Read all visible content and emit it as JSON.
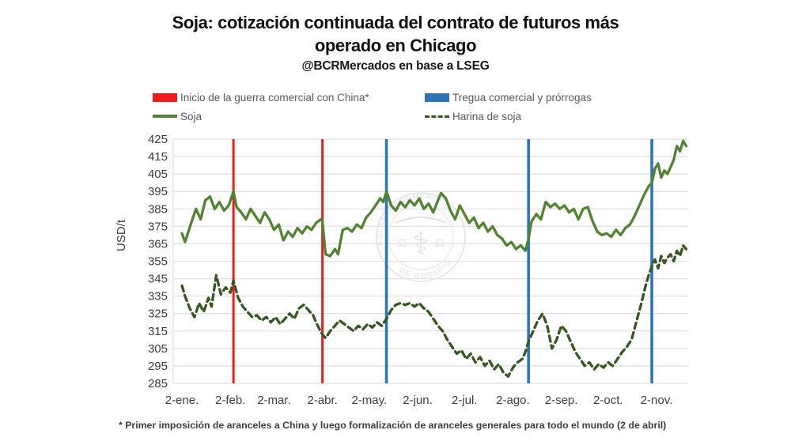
{
  "title": {
    "line1": "Soja: cotización continuada del contrato de futuros más",
    "line2": "operado en Chicago",
    "subtitle": "@BCRMercados en base a LSEG"
  },
  "legend": {
    "position": "top",
    "items": [
      {
        "label": "Inicio de la guerra comercial con China*",
        "swatch": "rect",
        "color": "#ee1c1c"
      },
      {
        "label": "Tregua comercial y prórrogas",
        "swatch": "rect",
        "color": "#2e75b6"
      },
      {
        "label": "Soja",
        "swatch": "line",
        "color": "#548235"
      },
      {
        "label": "Harina de soja",
        "swatch": "dashed-line",
        "color": "#375623"
      }
    ]
  },
  "footnote": "* Primer imposición de aranceles a China y luego formalización de aranceles generales para todo el mundo  (2 de abril)",
  "watermark": {
    "text_top": "BOLSA DE COMERCIO",
    "text_bottom": "DE ROSARIO"
  },
  "colors": {
    "event_red": "#ee1c1c",
    "event_blue": "#2e75b6",
    "soja_green": "#548235",
    "harina_dark_green": "#375623",
    "grid": "#e1e1e1",
    "axis_text": "#3d3d3d"
  },
  "chart_data": {
    "type": "line",
    "title": "Soja: cotización continuada del contrato de futuros más operado en Chicago",
    "xlabel": "",
    "ylabel": "USD/t",
    "ylim": [
      285,
      425
    ],
    "ytick_step": 10,
    "yticks": [
      425,
      415,
      405,
      395,
      385,
      375,
      365,
      355,
      345,
      335,
      325,
      315,
      305,
      295,
      285
    ],
    "grid": "horizontal",
    "legend_position": "top",
    "x_unit": "day-of-year 2025",
    "xticks": [
      {
        "day": 2,
        "label": "2-ene."
      },
      {
        "day": 33,
        "label": "2-feb."
      },
      {
        "day": 61,
        "label": "2-mar."
      },
      {
        "day": 92,
        "label": "2-abr."
      },
      {
        "day": 122,
        "label": "2-may."
      },
      {
        "day": 153,
        "label": "2-jun."
      },
      {
        "day": 183,
        "label": "2-jul."
      },
      {
        "day": 214,
        "label": "2-ago."
      },
      {
        "day": 245,
        "label": "2-sep."
      },
      {
        "day": 275,
        "label": "2-oct."
      },
      {
        "day": 306,
        "label": "2-nov."
      }
    ],
    "events": [
      {
        "day": 35,
        "color": "#ee1c1c",
        "width": 3,
        "label": "Inicio de la guerra comercial con China*"
      },
      {
        "day": 92,
        "color": "#ee1c1c",
        "width": 3,
        "label": "Inicio de la guerra comercial con China*"
      },
      {
        "day": 133,
        "color": "#2e75b6",
        "width": 3.6,
        "label": "Tregua comercial y prórrogas"
      },
      {
        "day": 224,
        "color": "#2e75b6",
        "width": 3.6,
        "label": "Tregua comercial y prórrogas"
      },
      {
        "day": 303,
        "color": "#2e75b6",
        "width": 3.6,
        "label": "Tregua comercial y prórrogas"
      }
    ],
    "series": [
      {
        "name": "Soja",
        "color": "#548235",
        "style": "solid",
        "stroke_width": 3.3,
        "points": [
          [
            2,
            371
          ],
          [
            4,
            366
          ],
          [
            8,
            377
          ],
          [
            11,
            385
          ],
          [
            14,
            379
          ],
          [
            17,
            390
          ],
          [
            20,
            392
          ],
          [
            23,
            385
          ],
          [
            26,
            389
          ],
          [
            29,
            384
          ],
          [
            32,
            387
          ],
          [
            35,
            395
          ],
          [
            37,
            386
          ],
          [
            40,
            383
          ],
          [
            43,
            379
          ],
          [
            46,
            385
          ],
          [
            49,
            381
          ],
          [
            52,
            377
          ],
          [
            55,
            383
          ],
          [
            58,
            379
          ],
          [
            61,
            373
          ],
          [
            64,
            376
          ],
          [
            67,
            367
          ],
          [
            70,
            372
          ],
          [
            73,
            369
          ],
          [
            76,
            374
          ],
          [
            79,
            371
          ],
          [
            82,
            375
          ],
          [
            85,
            373
          ],
          [
            88,
            377
          ],
          [
            91,
            379
          ],
          [
            92,
            378
          ],
          [
            94,
            359
          ],
          [
            97,
            358
          ],
          [
            100,
            362
          ],
          [
            102,
            359
          ],
          [
            105,
            373
          ],
          [
            108,
            374
          ],
          [
            111,
            372
          ],
          [
            114,
            376
          ],
          [
            117,
            374
          ],
          [
            120,
            380
          ],
          [
            123,
            383
          ],
          [
            126,
            387
          ],
          [
            129,
            391
          ],
          [
            131,
            389
          ],
          [
            133,
            395
          ],
          [
            136,
            387
          ],
          [
            139,
            384
          ],
          [
            142,
            389
          ],
          [
            145,
            386
          ],
          [
            148,
            390
          ],
          [
            151,
            387
          ],
          [
            154,
            391
          ],
          [
            157,
            385
          ],
          [
            160,
            388
          ],
          [
            163,
            383
          ],
          [
            166,
            390
          ],
          [
            168,
            394
          ],
          [
            171,
            391
          ],
          [
            174,
            384
          ],
          [
            177,
            379
          ],
          [
            180,
            387
          ],
          [
            183,
            382
          ],
          [
            186,
            377
          ],
          [
            189,
            380
          ],
          [
            192,
            374
          ],
          [
            195,
            377
          ],
          [
            198,
            372
          ],
          [
            201,
            375
          ],
          [
            204,
            370
          ],
          [
            207,
            368
          ],
          [
            210,
            364
          ],
          [
            213,
            366
          ],
          [
            216,
            362
          ],
          [
            219,
            364
          ],
          [
            222,
            361
          ],
          [
            224,
            368
          ],
          [
            226,
            378
          ],
          [
            229,
            382
          ],
          [
            232,
            379
          ],
          [
            235,
            389
          ],
          [
            238,
            386
          ],
          [
            241,
            388
          ],
          [
            244,
            385
          ],
          [
            247,
            387
          ],
          [
            250,
            383
          ],
          [
            253,
            385
          ],
          [
            256,
            379
          ],
          [
            259,
            385
          ],
          [
            262,
            386
          ],
          [
            265,
            378
          ],
          [
            268,
            372
          ],
          [
            271,
            370
          ],
          [
            274,
            371
          ],
          [
            277,
            369
          ],
          [
            280,
            373
          ],
          [
            283,
            370
          ],
          [
            286,
            374
          ],
          [
            289,
            376
          ],
          [
            292,
            381
          ],
          [
            295,
            387
          ],
          [
            298,
            393
          ],
          [
            301,
            398
          ],
          [
            303,
            400
          ],
          [
            305,
            408
          ],
          [
            307,
            411
          ],
          [
            309,
            403
          ],
          [
            311,
            407
          ],
          [
            313,
            405
          ],
          [
            315,
            409
          ],
          [
            317,
            413
          ],
          [
            319,
            421
          ],
          [
            321,
            418
          ],
          [
            323,
            424
          ],
          [
            325,
            421
          ]
        ]
      },
      {
        "name": "Harina de soja",
        "color": "#375623",
        "style": "dashed",
        "stroke_width": 3.3,
        "points": [
          [
            2,
            341
          ],
          [
            4,
            335
          ],
          [
            7,
            328
          ],
          [
            10,
            323
          ],
          [
            13,
            331
          ],
          [
            16,
            326
          ],
          [
            19,
            334
          ],
          [
            21,
            329
          ],
          [
            24,
            347
          ],
          [
            27,
            336
          ],
          [
            30,
            340
          ],
          [
            33,
            337
          ],
          [
            35,
            344
          ],
          [
            38,
            334
          ],
          [
            41,
            329
          ],
          [
            44,
            326
          ],
          [
            47,
            323
          ],
          [
            50,
            324
          ],
          [
            53,
            321
          ],
          [
            56,
            323
          ],
          [
            59,
            320
          ],
          [
            62,
            323
          ],
          [
            65,
            319
          ],
          [
            68,
            322
          ],
          [
            71,
            325
          ],
          [
            74,
            322
          ],
          [
            77,
            328
          ],
          [
            80,
            330
          ],
          [
            83,
            327
          ],
          [
            86,
            324
          ],
          [
            89,
            318
          ],
          [
            92,
            313
          ],
          [
            94,
            311
          ],
          [
            97,
            315
          ],
          [
            100,
            318
          ],
          [
            103,
            321
          ],
          [
            106,
            319
          ],
          [
            109,
            317
          ],
          [
            112,
            315
          ],
          [
            115,
            318
          ],
          [
            118,
            316
          ],
          [
            121,
            319
          ],
          [
            124,
            317
          ],
          [
            127,
            320
          ],
          [
            130,
            318
          ],
          [
            133,
            322
          ],
          [
            136,
            327
          ],
          [
            139,
            330
          ],
          [
            142,
            331
          ],
          [
            145,
            330
          ],
          [
            148,
            331
          ],
          [
            151,
            329
          ],
          [
            154,
            331
          ],
          [
            157,
            328
          ],
          [
            160,
            326
          ],
          [
            163,
            322
          ],
          [
            166,
            318
          ],
          [
            169,
            315
          ],
          [
            172,
            310
          ],
          [
            175,
            306
          ],
          [
            178,
            302
          ],
          [
            181,
            304
          ],
          [
            184,
            299
          ],
          [
            187,
            302
          ],
          [
            190,
            297
          ],
          [
            193,
            300
          ],
          [
            196,
            295
          ],
          [
            199,
            298
          ],
          [
            202,
            293
          ],
          [
            205,
            296
          ],
          [
            208,
            291
          ],
          [
            211,
            289
          ],
          [
            214,
            294
          ],
          [
            217,
            297
          ],
          [
            220,
            299
          ],
          [
            222,
            303
          ],
          [
            224,
            309
          ],
          [
            227,
            315
          ],
          [
            230,
            321
          ],
          [
            233,
            325
          ],
          [
            236,
            318
          ],
          [
            239,
            305
          ],
          [
            242,
            310
          ],
          [
            245,
            318
          ],
          [
            248,
            315
          ],
          [
            251,
            309
          ],
          [
            254,
            303
          ],
          [
            257,
            299
          ],
          [
            260,
            295
          ],
          [
            263,
            297
          ],
          [
            266,
            293
          ],
          [
            269,
            296
          ],
          [
            272,
            294
          ],
          [
            275,
            297
          ],
          [
            278,
            295
          ],
          [
            281,
            299
          ],
          [
            284,
            303
          ],
          [
            287,
            306
          ],
          [
            290,
            310
          ],
          [
            293,
            320
          ],
          [
            296,
            330
          ],
          [
            299,
            341
          ],
          [
            301,
            347
          ],
          [
            303,
            352
          ],
          [
            305,
            356
          ],
          [
            307,
            351
          ],
          [
            309,
            358
          ],
          [
            311,
            354
          ],
          [
            313,
            357
          ],
          [
            315,
            359
          ],
          [
            317,
            355
          ],
          [
            319,
            361
          ],
          [
            321,
            358
          ],
          [
            323,
            364
          ],
          [
            325,
            362
          ]
        ]
      }
    ]
  }
}
